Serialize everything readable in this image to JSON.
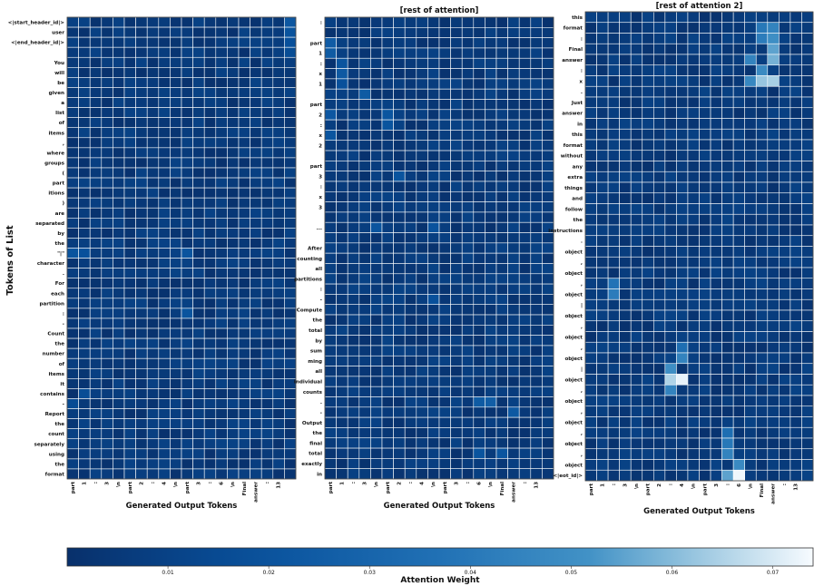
{
  "figure": {
    "ylabel": "Tokens of List",
    "colorbar_label": "Attention Weight",
    "colormap": "Blues_r",
    "colors": {
      "low": "#08306b",
      "mid": "#4292c6",
      "high": "#f7fbff",
      "grid": "#ffffff"
    }
  },
  "chart_data": [
    {
      "type": "heatmap",
      "title": "",
      "xlabel": "Generated Output Tokens",
      "x": [
        "part",
        "1",
        ":",
        "3",
        "\\n",
        "part",
        "2",
        ":",
        "4",
        "\\n",
        "part",
        "3",
        ":",
        "6",
        "\\n",
        "Final",
        "answer",
        ":",
        "13",
        ""
      ],
      "y": [
        "<|start_header_id|>",
        "user",
        "<|end_header_id|>",
        "",
        "You",
        "will",
        "be",
        "given",
        "a",
        "list",
        "of",
        "items",
        ",",
        "where",
        "groups",
        "(",
        "part",
        "itions",
        ")",
        "are",
        "separated",
        "by",
        "the",
        "\"|\"",
        "character",
        ".",
        "For",
        "each",
        "partition",
        ":",
        "-",
        "Count",
        "the",
        "number",
        "of",
        "items",
        "it",
        "contains",
        "-",
        "Report",
        "the",
        "count",
        "separately",
        "using",
        "the",
        "format"
      ],
      "hot_cells": [
        {
          "row": 0,
          "col": 19,
          "value": 0.022
        },
        {
          "row": 1,
          "col": 19,
          "value": 0.02
        },
        {
          "row": 2,
          "col": 19,
          "value": 0.018
        },
        {
          "row": 3,
          "col": 19,
          "value": 0.016
        },
        {
          "row": 23,
          "col": 0,
          "value": 0.02
        },
        {
          "row": 23,
          "col": 1,
          "value": 0.018
        },
        {
          "row": 23,
          "col": 10,
          "value": 0.02
        },
        {
          "row": 29,
          "col": 10,
          "value": 0.02
        },
        {
          "row": 37,
          "col": 1,
          "value": 0.016
        },
        {
          "row": 38,
          "col": 0,
          "value": 0.015
        }
      ]
    },
    {
      "type": "heatmap",
      "title": "[rest of attention]",
      "xlabel": "Generated Output Tokens",
      "x": [
        "part",
        "1",
        ":",
        "3",
        "\\n",
        "part",
        "2",
        ":",
        "4",
        "\\n",
        "part",
        "3",
        ":",
        "6",
        "\\n",
        "Final",
        "answer",
        ":",
        "13",
        ""
      ],
      "y": [
        ":",
        "",
        "part",
        "1",
        ":",
        "x",
        "1",
        "",
        "part",
        "2",
        ":",
        "x",
        "2",
        "",
        "part",
        "3",
        ":",
        "x",
        "3",
        "",
        "...",
        "",
        "After",
        "counting",
        "all",
        "partitions",
        ":",
        "-",
        "Compute",
        "the",
        "total",
        "by",
        "sum",
        "ming",
        "all",
        "individual",
        "counts",
        ".",
        "-",
        "Output",
        "the",
        "final",
        "total",
        "exactly",
        "in"
      ],
      "hot_cells": [
        {
          "row": 2,
          "col": 0,
          "value": 0.025
        },
        {
          "row": 3,
          "col": 0,
          "value": 0.024
        },
        {
          "row": 4,
          "col": 1,
          "value": 0.02
        },
        {
          "row": 5,
          "col": 1,
          "value": 0.023
        },
        {
          "row": 6,
          "col": 1,
          "value": 0.018
        },
        {
          "row": 7,
          "col": 3,
          "value": 0.024
        },
        {
          "row": 9,
          "col": 0,
          "value": 0.022
        },
        {
          "row": 9,
          "col": 5,
          "value": 0.021
        },
        {
          "row": 10,
          "col": 5,
          "value": 0.02
        },
        {
          "row": 11,
          "col": 0,
          "value": 0.021
        },
        {
          "row": 15,
          "col": 6,
          "value": 0.02
        },
        {
          "row": 20,
          "col": 4,
          "value": 0.02
        },
        {
          "row": 20,
          "col": 9,
          "value": 0.019
        },
        {
          "row": 27,
          "col": 9,
          "value": 0.018
        },
        {
          "row": 37,
          "col": 13,
          "value": 0.024
        },
        {
          "row": 37,
          "col": 14,
          "value": 0.026
        },
        {
          "row": 38,
          "col": 16,
          "value": 0.023
        },
        {
          "row": 42,
          "col": 13,
          "value": 0.02
        },
        {
          "row": 42,
          "col": 15,
          "value": 0.021
        }
      ]
    },
    {
      "type": "heatmap",
      "title": "[rest of attention 2]",
      "xlabel": "Generated Output Tokens",
      "x": [
        "part",
        "1",
        ":",
        "3",
        "\\n",
        "part",
        "2",
        ":",
        "4",
        "\\n",
        "part",
        "3",
        ":",
        "6",
        "\\n",
        "Final",
        "answer",
        ":",
        "13",
        ""
      ],
      "y": [
        "this",
        "format",
        ":",
        "Final",
        "answer",
        ":",
        "x",
        ".",
        "Just",
        "answer",
        "in",
        "this",
        "format",
        "without",
        "any",
        "extra",
        "things",
        "and",
        "follow",
        "the",
        "instructions",
        ".",
        "object",
        ",",
        "object",
        ",",
        "object",
        "|",
        "object",
        ",",
        "object",
        ",",
        "object",
        "|",
        "object",
        ",",
        "object",
        ",",
        "object",
        ",",
        "object",
        ",",
        "object",
        "<|eot_id|>"
      ],
      "hot_cells": [
        {
          "row": 1,
          "col": 15,
          "value": 0.04
        },
        {
          "row": 1,
          "col": 16,
          "value": 0.045
        },
        {
          "row": 2,
          "col": 15,
          "value": 0.042
        },
        {
          "row": 2,
          "col": 16,
          "value": 0.05
        },
        {
          "row": 3,
          "col": 16,
          "value": 0.055
        },
        {
          "row": 4,
          "col": 14,
          "value": 0.045
        },
        {
          "row": 4,
          "col": 16,
          "value": 0.058
        },
        {
          "row": 5,
          "col": 15,
          "value": 0.048
        },
        {
          "row": 6,
          "col": 14,
          "value": 0.047
        },
        {
          "row": 6,
          "col": 15,
          "value": 0.062
        },
        {
          "row": 6,
          "col": 16,
          "value": 0.064
        },
        {
          "row": 25,
          "col": 2,
          "value": 0.038
        },
        {
          "row": 26,
          "col": 2,
          "value": 0.042
        },
        {
          "row": 31,
          "col": 8,
          "value": 0.035
        },
        {
          "row": 32,
          "col": 8,
          "value": 0.045
        },
        {
          "row": 33,
          "col": 7,
          "value": 0.05
        },
        {
          "row": 34,
          "col": 7,
          "value": 0.065
        },
        {
          "row": 34,
          "col": 8,
          "value": 0.072
        },
        {
          "row": 35,
          "col": 7,
          "value": 0.045
        },
        {
          "row": 39,
          "col": 12,
          "value": 0.035
        },
        {
          "row": 40,
          "col": 12,
          "value": 0.04
        },
        {
          "row": 41,
          "col": 12,
          "value": 0.045
        },
        {
          "row": 42,
          "col": 13,
          "value": 0.048
        },
        {
          "row": 43,
          "col": 12,
          "value": 0.055
        },
        {
          "row": 43,
          "col": 13,
          "value": 0.073
        },
        {
          "row": 44,
          "col": 12,
          "value": 0.058
        }
      ]
    }
  ],
  "colorbar": {
    "range": [
      0,
      0.074
    ],
    "ticks": [
      "0.01",
      "0.02",
      "0.03",
      "0.04",
      "0.05",
      "0.06",
      "0.07"
    ]
  }
}
